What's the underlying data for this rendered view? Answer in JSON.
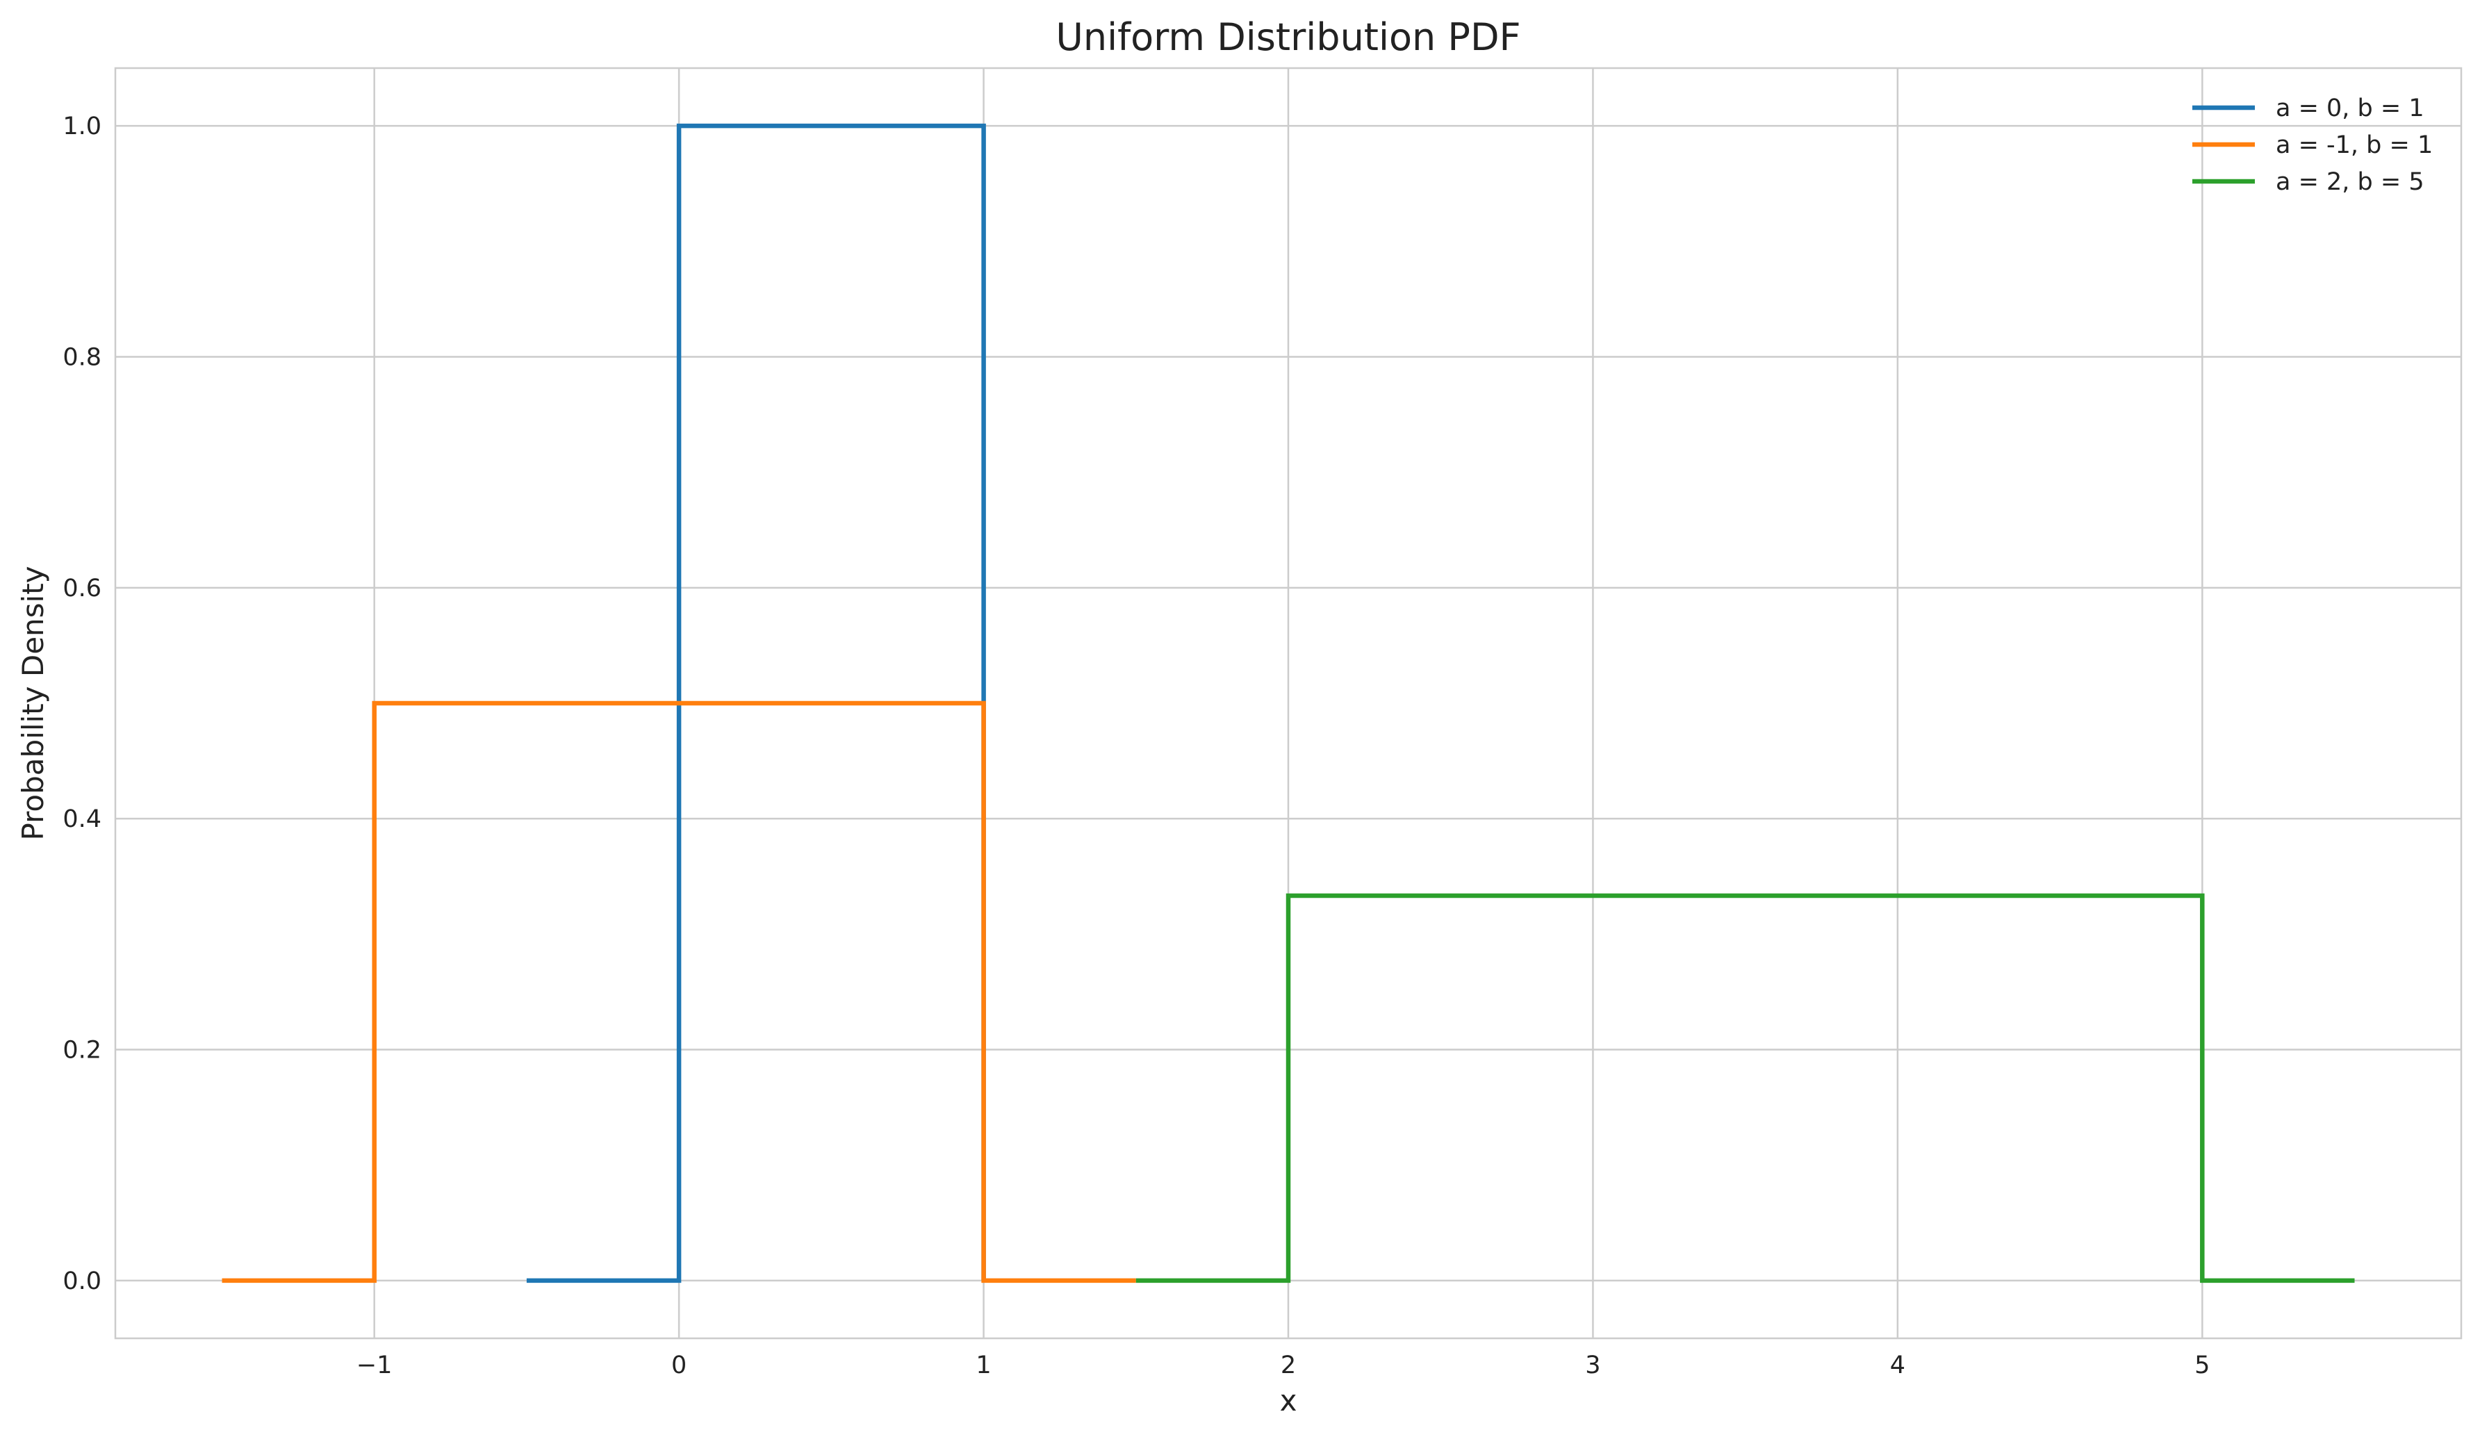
{
  "chart_data": {
    "type": "line",
    "title": "Uniform Distribution PDF",
    "xlabel": "x",
    "ylabel": "Probability Density",
    "xlim": [
      -1.85,
      5.85
    ],
    "ylim": [
      -0.05,
      1.05
    ],
    "xticks": [
      -1,
      0,
      1,
      2,
      3,
      4,
      5
    ],
    "xtick_labels": [
      "−1",
      "0",
      "1",
      "2",
      "3",
      "4",
      "5"
    ],
    "yticks": [
      0.0,
      0.2,
      0.4,
      0.6,
      0.8,
      1.0
    ],
    "ytick_labels": [
      "0.0",
      "0.2",
      "0.4",
      "0.6",
      "0.8",
      "1.0"
    ],
    "grid": true,
    "legend_position": "top-right",
    "series": [
      {
        "name": "a = 0, b = 1",
        "color": "#1f77b4",
        "x": [
          -0.5,
          0,
          0,
          1,
          1
        ],
        "y": [
          0,
          0,
          1.0,
          1.0,
          0
        ]
      },
      {
        "name": "a = -1, b = 1",
        "color": "#ff7f0e",
        "x": [
          -1.5,
          -1,
          -1,
          1,
          1,
          1.5
        ],
        "y": [
          0,
          0,
          0.5,
          0.5,
          0,
          0
        ]
      },
      {
        "name": "a = 2, b = 5",
        "color": "#2ca02c",
        "x": [
          1.5,
          2,
          2,
          5,
          5,
          5.5
        ],
        "y": [
          0,
          0,
          0.3333,
          0.3333,
          0,
          0
        ]
      }
    ]
  }
}
